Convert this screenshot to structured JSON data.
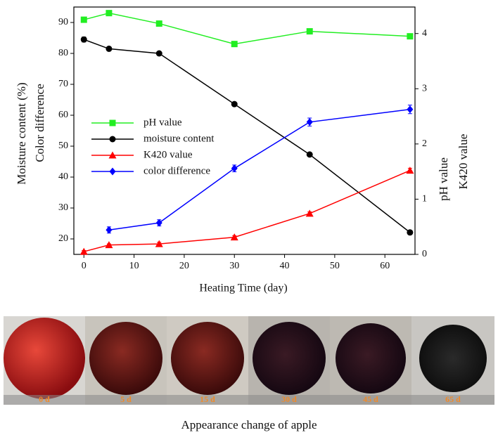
{
  "chart_data": {
    "type": "line",
    "x_label": "Heating Time (day)",
    "y_labels": [
      {
        "text": "Moisture content (%)",
        "color": "#000000"
      },
      {
        "text": "Color difference",
        "color": "#0000ff"
      }
    ],
    "y2_labels": [
      {
        "text": "pH value",
        "color": "#22dd22"
      },
      {
        "text": "K420 value",
        "color": "#ff0000"
      }
    ],
    "x": [
      0,
      5,
      15,
      30,
      45,
      65
    ],
    "series": [
      {
        "name": "pH value",
        "color": "#22ee22",
        "marker": "square",
        "axis": "y2",
        "values": [
          4.25,
          4.37,
          4.18,
          3.81,
          4.04,
          3.95
        ],
        "errors": [
          0.02,
          0.02,
          0.02,
          0.02,
          0.02,
          0.02
        ]
      },
      {
        "name": "moisture content",
        "color": "#000000",
        "marker": "circle",
        "values": [
          84.5,
          81.5,
          80.0,
          63.6,
          47.3,
          22.1
        ],
        "errors": [
          0.8,
          0.5,
          0.5,
          0.6,
          0.4,
          0.4
        ]
      },
      {
        "name": "K420 value",
        "color": "#ff0000",
        "marker": "triangle",
        "axis": "y2",
        "values": [
          0.05,
          0.17,
          0.19,
          0.31,
          0.74,
          1.52
        ],
        "errors": [
          0.02,
          0.02,
          0.03,
          0.03,
          0.03,
          0.04
        ]
      },
      {
        "name": "color difference",
        "color": "#0000ff",
        "marker": "diamond",
        "values": [
          null,
          22.9,
          25.2,
          42.8,
          57.8,
          61.9
        ],
        "errors": [
          null,
          1.0,
          1.0,
          1.1,
          1.3,
          1.4
        ]
      }
    ],
    "xlim": [
      -2,
      66
    ],
    "xticks": [
      0,
      10,
      20,
      30,
      40,
      50,
      60
    ],
    "ylim": [
      15,
      95
    ],
    "yticks": [
      20,
      30,
      40,
      50,
      60,
      70,
      80,
      90
    ],
    "y2lim": [
      0,
      4.48
    ],
    "y2ticks": [
      0,
      1,
      2,
      3,
      4
    ],
    "legend": "upper-left"
  },
  "photos": {
    "labels": [
      "0 d",
      "5 d",
      "15 d",
      "30 d",
      "45 d",
      "65 d"
    ],
    "caption": "Appearance change of apple"
  }
}
